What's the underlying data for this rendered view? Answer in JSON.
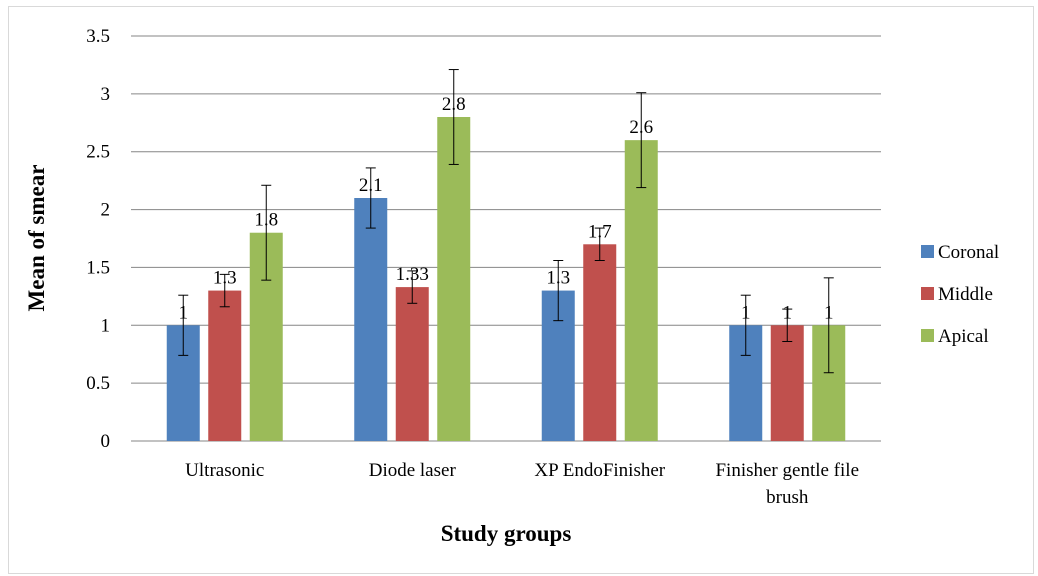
{
  "chart_data": {
    "type": "bar",
    "title": "",
    "xlabel": "Study groups",
    "ylabel": "Mean of  smear",
    "ylim": [
      0,
      3.5
    ],
    "yticks": [
      "0",
      "0.5",
      "1",
      "1.5",
      "2",
      "2.5",
      "3",
      "3.5"
    ],
    "categories": [
      "Ultrasonic",
      "Diode laser",
      "XP EndoFinisher",
      "Finisher gentle file brush"
    ],
    "category_lines": [
      [
        "Ultrasonic"
      ],
      [
        "Diode laser"
      ],
      [
        "XP EndoFinisher"
      ],
      [
        "Finisher gentle file",
        "brush"
      ]
    ],
    "series": [
      {
        "name": "Coronal",
        "color": "#4f81bd",
        "values": [
          1,
          2.1,
          1.3,
          1
        ],
        "labels": [
          "1",
          "2.1",
          "1.3",
          "1"
        ],
        "error": [
          0.26,
          0.26,
          0.26,
          0.26
        ]
      },
      {
        "name": "Middle",
        "color": "#c0504d",
        "values": [
          1.3,
          1.33,
          1.7,
          1
        ],
        "labels": [
          "1.3",
          "1.33",
          "1.7",
          "1"
        ],
        "error": [
          0.14,
          0.14,
          0.14,
          0.14
        ]
      },
      {
        "name": "Apical",
        "color": "#9bbb59",
        "values": [
          1.8,
          2.8,
          2.6,
          1
        ],
        "labels": [
          "1.8",
          "2.8",
          "2.6",
          "1"
        ],
        "error": [
          0.41,
          0.41,
          0.41,
          0.41
        ]
      }
    ],
    "grid": true,
    "legend": "right",
    "error_bars": true
  }
}
